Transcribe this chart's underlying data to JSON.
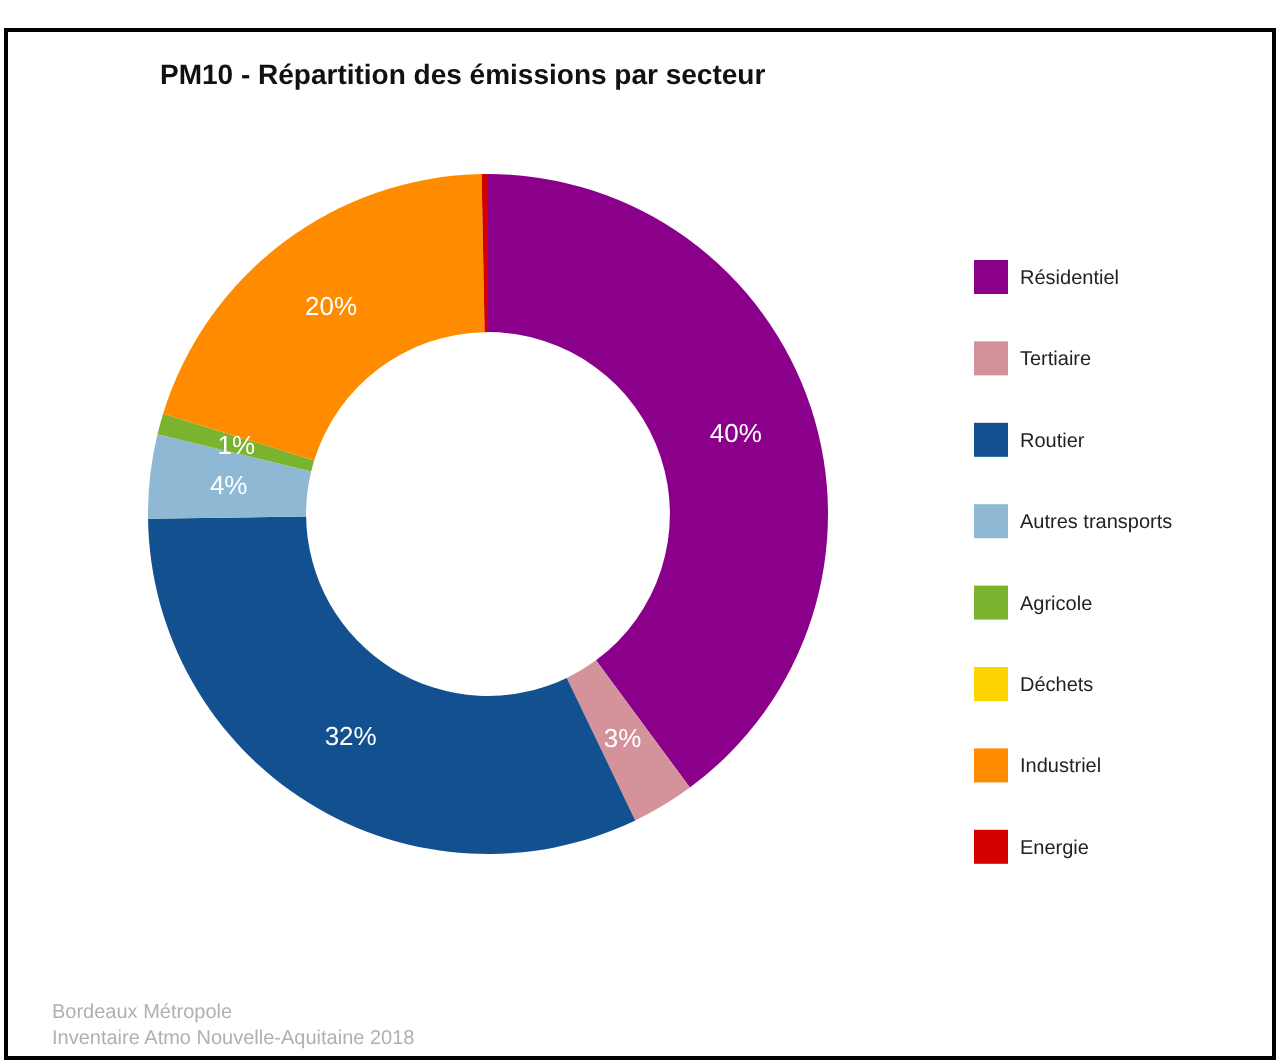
{
  "chart_data": {
    "type": "donut",
    "title": "PM10 - Répartition des émissions par secteur",
    "categories": [
      "Résidentiel",
      "Tertiaire",
      "Routier",
      "Autres transports",
      "Agricole",
      "Déchets",
      "Industriel",
      "Energie"
    ],
    "values": [
      40,
      3,
      32,
      4,
      1,
      0,
      20,
      0.3
    ],
    "colors": [
      "#8b008b",
      "#d4939b",
      "#12508f",
      "#8fb8d4",
      "#7ab32e",
      "#ffd400",
      "#ff8c00",
      "#d40000"
    ],
    "value_labels": [
      "40%",
      "3%",
      "32%",
      "4%",
      "1%",
      null,
      "20%",
      null
    ],
    "legend": "right",
    "annotations": [
      "Bordeaux Métropole",
      "Inventaire Atmo Nouvelle-Aquitaine 2018"
    ]
  }
}
